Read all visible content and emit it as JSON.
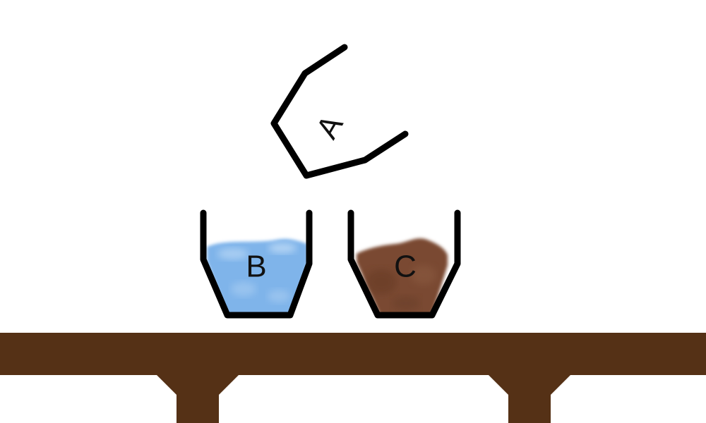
{
  "cups": [
    {
      "id": "A",
      "label": "A",
      "content": "empty",
      "tilted": true
    },
    {
      "id": "B",
      "label": "B",
      "content": "water",
      "fill_color": "#7fb4ea"
    },
    {
      "id": "C",
      "label": "C",
      "content": "soil",
      "fill_color": "#7a4a32"
    }
  ],
  "colors": {
    "outline": "#000000",
    "table": "#553116",
    "background": "#ffffff"
  }
}
